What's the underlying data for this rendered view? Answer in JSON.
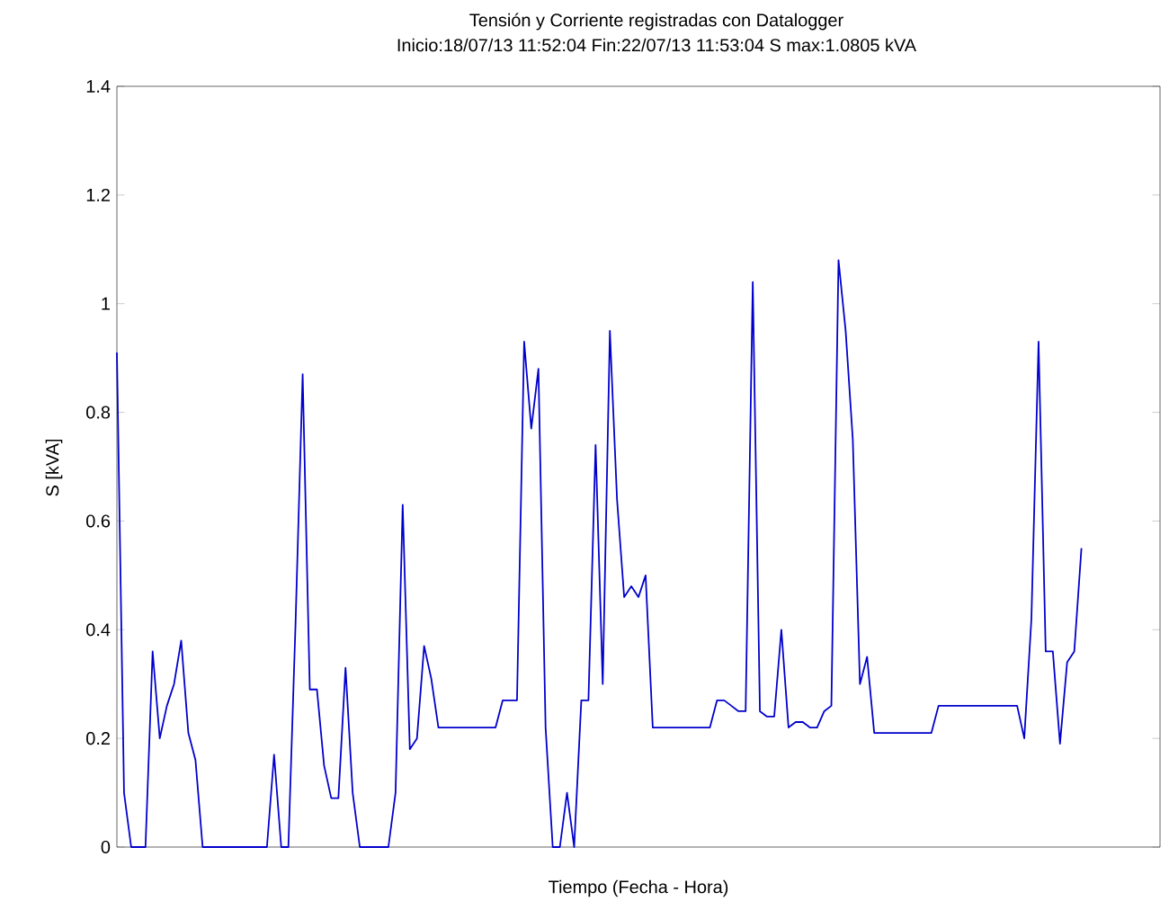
{
  "chart_data": {
    "type": "line",
    "title": "Tensión y Corriente registradas con Datalogger",
    "subtitle": "Inicio:18/07/13 11:52:04  Fin:22/07/13 11:53:04  S max:1.0805 kVA",
    "xlabel": "Tiempo (Fecha - Hora)",
    "ylabel": "S [kVA]",
    "categories": [
      null,
      null,
      null,
      null,
      null,
      null,
      null,
      null,
      null,
      null,
      null,
      null,
      null,
      null,
      null,
      null,
      null,
      null,
      null,
      null,
      null,
      null,
      null,
      null,
      null,
      null,
      null,
      null,
      null,
      null,
      null,
      null,
      null,
      null,
      null,
      null,
      null,
      null,
      null,
      null,
      null,
      null,
      null,
      null,
      null,
      null,
      null,
      null,
      null,
      null,
      null,
      null,
      null,
      null,
      null,
      null,
      null,
      null,
      null,
      null,
      null,
      null,
      null,
      null,
      null,
      null,
      null,
      null,
      null,
      null,
      null,
      null,
      null,
      null,
      null,
      null,
      null,
      null,
      null,
      null,
      null,
      null,
      null,
      null,
      null,
      null,
      null,
      null,
      null,
      null,
      null,
      null,
      null,
      null,
      null,
      null,
      null,
      null,
      null,
      null,
      null,
      null,
      null,
      null,
      null,
      null,
      null,
      null,
      null,
      null,
      null,
      null,
      null,
      null,
      null,
      null,
      null,
      null,
      null,
      null,
      null,
      null,
      null,
      null,
      null,
      null,
      null,
      null,
      null,
      null,
      null,
      null,
      null,
      null,
      null,
      null,
      null,
      null,
      null,
      null,
      null,
      null,
      null,
      null,
      null,
      null,
      null
    ],
    "series": [
      {
        "color": "#0000cc",
        "values": [
          0.91,
          0.1,
          0,
          0,
          0,
          0.36,
          0.2,
          0.26,
          0.3,
          0.38,
          0.21,
          0.16,
          0,
          0,
          0,
          0,
          0,
          0,
          0,
          0,
          0,
          0,
          0.17,
          0,
          0,
          0.41,
          0.87,
          0.29,
          0.29,
          0.15,
          0.09,
          0.09,
          0.33,
          0.1,
          0,
          0,
          0,
          0,
          0,
          0.1,
          0.63,
          0.18,
          0.2,
          0.37,
          0.31,
          0.22,
          0.22,
          0.22,
          0.22,
          0.22,
          0.22,
          0.22,
          0.22,
          0.22,
          0.27,
          0.27,
          0.27,
          0.93,
          0.77,
          0.88,
          0.22,
          0,
          0,
          0.1,
          0,
          0.27,
          0.27,
          0.74,
          0.3,
          0.95,
          0.64,
          0.46,
          0.48,
          0.46,
          0.5,
          0.22,
          0.22,
          0.22,
          0.22,
          0.22,
          0.22,
          0.22,
          0.22,
          0.22,
          0.27,
          0.27,
          0.26,
          0.25,
          0.25,
          1.04,
          0.25,
          0.24,
          0.24,
          0.4,
          0.22,
          0.23,
          0.23,
          0.22,
          0.22,
          0.25,
          0.26,
          1.08,
          0.95,
          0.75,
          0.3,
          0.35,
          0.21,
          0.21,
          0.21,
          0.21,
          0.21,
          0.21,
          0.21,
          0.21,
          0.21,
          0.26,
          0.26,
          0.26,
          0.26,
          0.26,
          0.26,
          0.26,
          0.26,
          0.26,
          0.26,
          0.26,
          0.26,
          0.2,
          0.42,
          0.93,
          0.36,
          0.36,
          0.19,
          0.34,
          0.36,
          0.55,
          null,
          null,
          null,
          null,
          null,
          null,
          null,
          null,
          null,
          null,
          null
        ]
      }
    ],
    "ylim": [
      0,
      1.4
    ],
    "yticks": [
      0,
      0.2,
      0.4,
      0.6,
      0.8,
      1,
      1.2,
      1.4
    ],
    "grid": false,
    "marker": "none",
    "line_style": "solid"
  }
}
